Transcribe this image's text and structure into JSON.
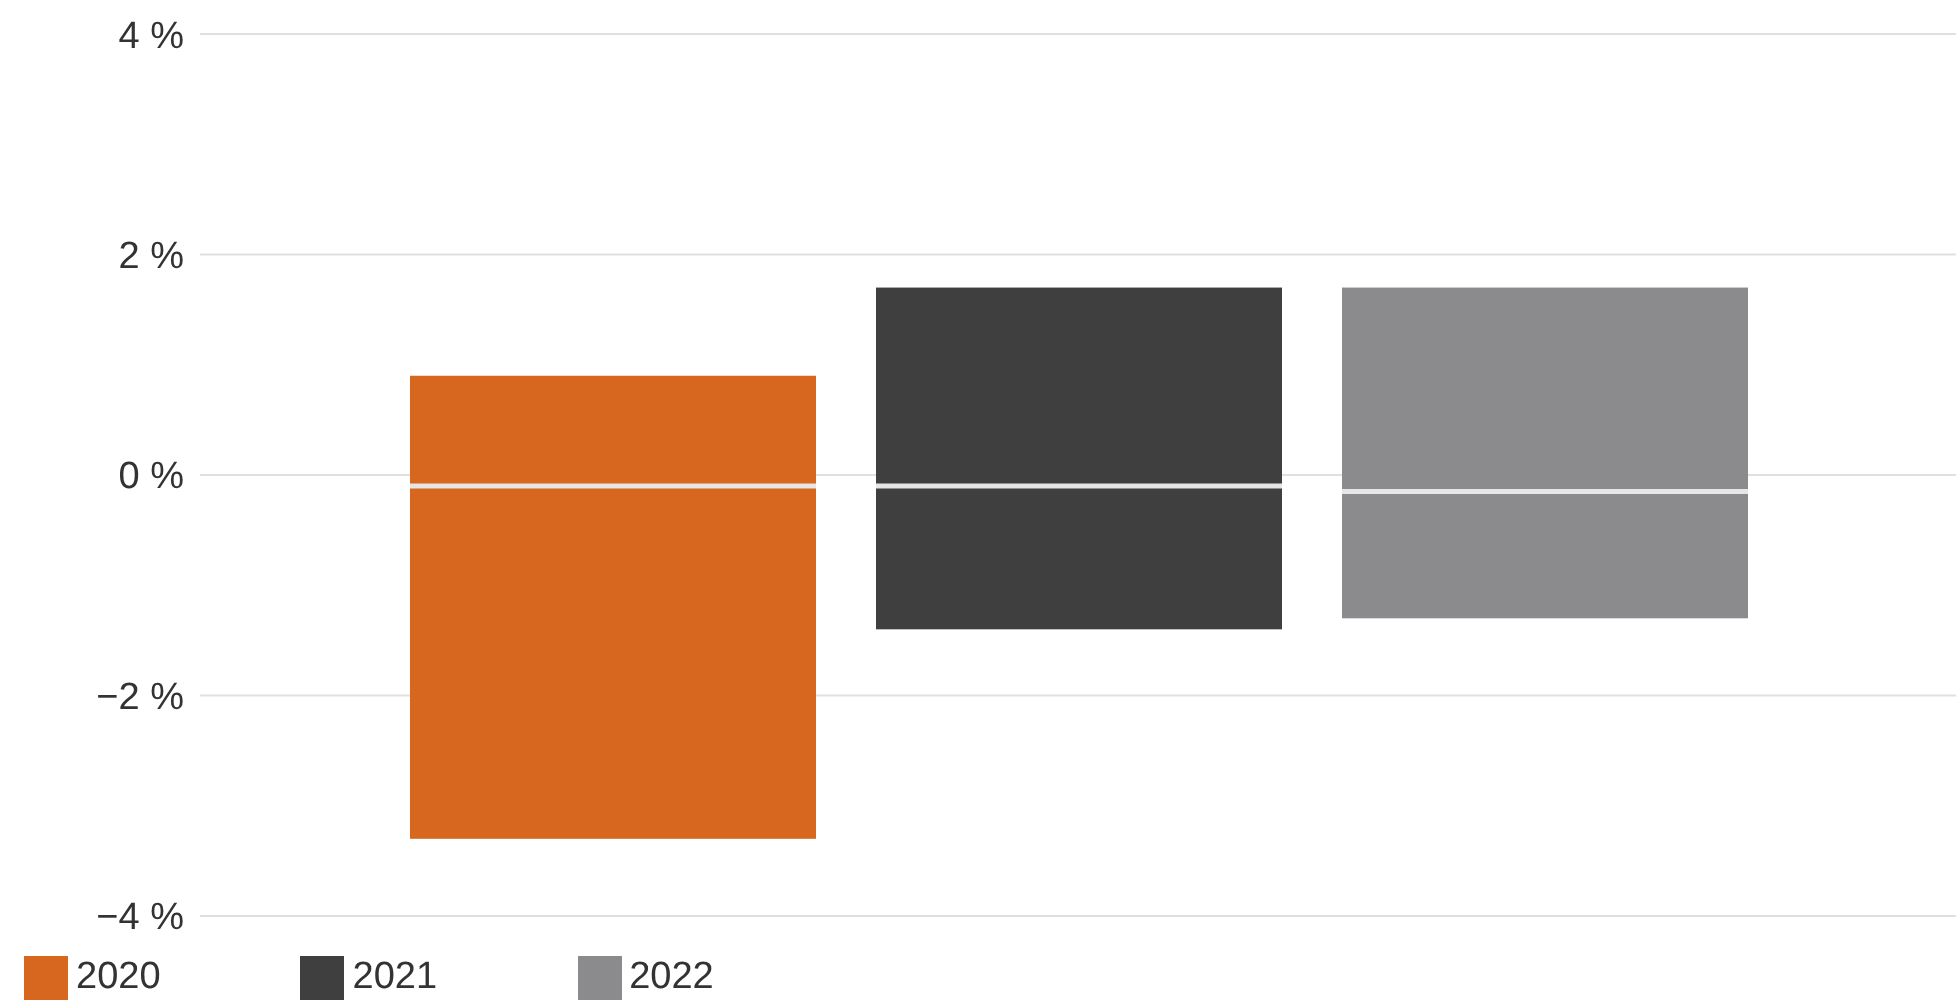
{
  "chart_data": {
    "type": "box",
    "categories": [
      null
    ],
    "series": [
      {
        "name": "2020",
        "color": "#d7661e",
        "boxes": [
          {
            "low": -3.3,
            "q1": -3.3,
            "median": -0.1,
            "q3": 0.9,
            "high": 0.9
          }
        ]
      },
      {
        "name": "2021",
        "color": "#3f3f3f",
        "boxes": [
          {
            "low": -1.4,
            "q1": -1.4,
            "median": -0.1,
            "q3": 1.7,
            "high": 1.7
          }
        ]
      },
      {
        "name": "2022",
        "color": "#8b8b8e",
        "boxes": [
          {
            "low": -1.3,
            "q1": -1.3,
            "median": -0.15,
            "q3": 1.7,
            "high": 1.7
          }
        ]
      }
    ],
    "ylim": [
      -4,
      4
    ],
    "yticks": [
      {
        "value": -4,
        "label": "−4 %"
      },
      {
        "value": -2,
        "label": "−2 %"
      },
      {
        "value": 0,
        "label": "0 %"
      },
      {
        "value": 2,
        "label": "2 %"
      },
      {
        "value": 4,
        "label": "4 %"
      }
    ],
    "grid": "y",
    "legend": "bottom left"
  }
}
